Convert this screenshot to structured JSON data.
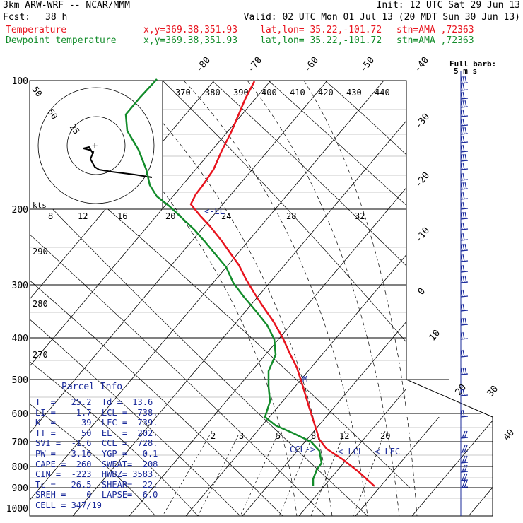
{
  "header": {
    "model": "3km ARW-WRF -- NCAR/MMM",
    "init": "Init: 12 UTC Sat 29 Jun 13",
    "fcst_label": "Fcst:",
    "fcst_value": "38 h",
    "valid": "Valid: 02 UTC Mon 01 Jul 13 (20 MDT Sun 30 Jun 13)",
    "temp_label": "Temperature",
    "dew_label": "Dewpoint temperature",
    "xy": "x,y=369.38,351.93",
    "latlon": "lat,lon= 35.22,-101.72",
    "stn": "stn=AMA ,72363"
  },
  "colors": {
    "temperature": "#e8141e",
    "dewpoint": "#128c2a",
    "parcel": "#1a2a9a",
    "barb": "#1a2a9a"
  },
  "full_barb_label": "Full barb:",
  "full_barb_value": "5 m s",
  "hodograph": {
    "ring_labels": [
      "50",
      "25"
    ],
    "plus_marker": "+",
    "kts_label": "kts"
  },
  "parcel_info": {
    "title": "Parcel Info",
    "rows": [
      "T  =   25.2  Td =  13.6",
      "LI =   -1.7  LCL =  738.",
      "K  =     39  LFC =  739.",
      "TT =     50  EL  =  202.",
      "SVI =  -1.6  CCL =  728.",
      "PW =   3.16  YGP =   0.1",
      "CAPE =  260  SWEAT=  208",
      "CIN =  -223  HWBZ= 3583.",
      "Tc =   26.5  SHEAR=  22.",
      "SREH =    0  LAPSE=  6.0",
      "CELL = 347/19"
    ]
  },
  "markers": {
    "el": "<-EL",
    "ccl": "CCL->",
    "lcl": "<-LCL",
    "lfc": "<-LFC",
    "m": "M"
  },
  "chart_data": {
    "type": "skew-T log-P",
    "y_axis": "pressure (hPa), log scale",
    "pressure_levels": [
      100,
      200,
      300,
      400,
      500,
      600,
      700,
      800,
      900,
      1000
    ],
    "isotherm_labels": [
      "-80",
      "-70",
      "-60",
      "-50",
      "-40",
      "-30",
      "-20",
      "-10",
      "0",
      "10",
      "20",
      "30",
      "40"
    ],
    "theta_labels_top": [
      "370",
      "380",
      "390",
      "400",
      "410",
      "420",
      "430",
      "440"
    ],
    "theta_labels_left": [
      "290",
      "280",
      "270"
    ],
    "mixing_ratio_labels_upper": [
      "8",
      "12",
      "16",
      "20",
      "24",
      "28",
      "32"
    ],
    "mixing_ratio_labels_lower": [
      "2",
      "3",
      "5",
      "8",
      "12",
      "20"
    ],
    "series": [
      {
        "name": "Temperature",
        "points": [
          [
            360,
            115
          ],
          [
            347,
            140
          ],
          [
            328,
            185
          ],
          [
            313,
            215
          ],
          [
            302,
            240
          ],
          [
            287,
            262
          ],
          [
            277,
            275
          ],
          [
            270,
            289
          ],
          [
            283,
            305
          ],
          [
            297,
            320
          ],
          [
            313,
            340
          ],
          [
            325,
            357
          ],
          [
            338,
            375
          ],
          [
            348,
            395
          ],
          [
            360,
            415
          ],
          [
            373,
            435
          ],
          [
            387,
            455
          ],
          [
            400,
            478
          ],
          [
            410,
            500
          ],
          [
            420,
            520
          ],
          [
            428,
            545
          ],
          [
            437,
            575
          ],
          [
            445,
            600
          ],
          [
            452,
            622
          ],
          [
            462,
            635
          ],
          [
            485,
            650
          ],
          [
            508,
            668
          ],
          [
            530,
            688
          ]
        ]
      },
      {
        "name": "Dewpoint temperature",
        "points": [
          [
            222,
            112
          ],
          [
            198,
            138
          ],
          [
            178,
            162
          ],
          [
            180,
            185
          ],
          [
            196,
            212
          ],
          [
            207,
            240
          ],
          [
            212,
            262
          ],
          [
            222,
            278
          ],
          [
            240,
            292
          ],
          [
            257,
            308
          ],
          [
            275,
            325
          ],
          [
            290,
            342
          ],
          [
            305,
            360
          ],
          [
            320,
            378
          ],
          [
            330,
            400
          ],
          [
            345,
            420
          ],
          [
            362,
            440
          ],
          [
            378,
            460
          ],
          [
            388,
            480
          ],
          [
            390,
            502
          ],
          [
            380,
            525
          ],
          [
            380,
            547
          ],
          [
            382,
            568
          ],
          [
            375,
            590
          ],
          [
            390,
            602
          ],
          [
            415,
            613
          ],
          [
            440,
            625
          ],
          [
            452,
            638
          ],
          [
            455,
            655
          ],
          [
            448,
            665
          ],
          [
            443,
            678
          ],
          [
            443,
            688
          ]
        ]
      }
    ],
    "hodograph_trace": [
      [
        132,
        218
      ],
      [
        126,
        208
      ],
      [
        118,
        210
      ],
      [
        126,
        212
      ],
      [
        132,
        215
      ],
      [
        128,
        225
      ],
      [
        134,
        236
      ],
      [
        140,
        240
      ],
      [
        158,
        243
      ],
      [
        190,
        247
      ],
      [
        215,
        251
      ]
    ]
  }
}
